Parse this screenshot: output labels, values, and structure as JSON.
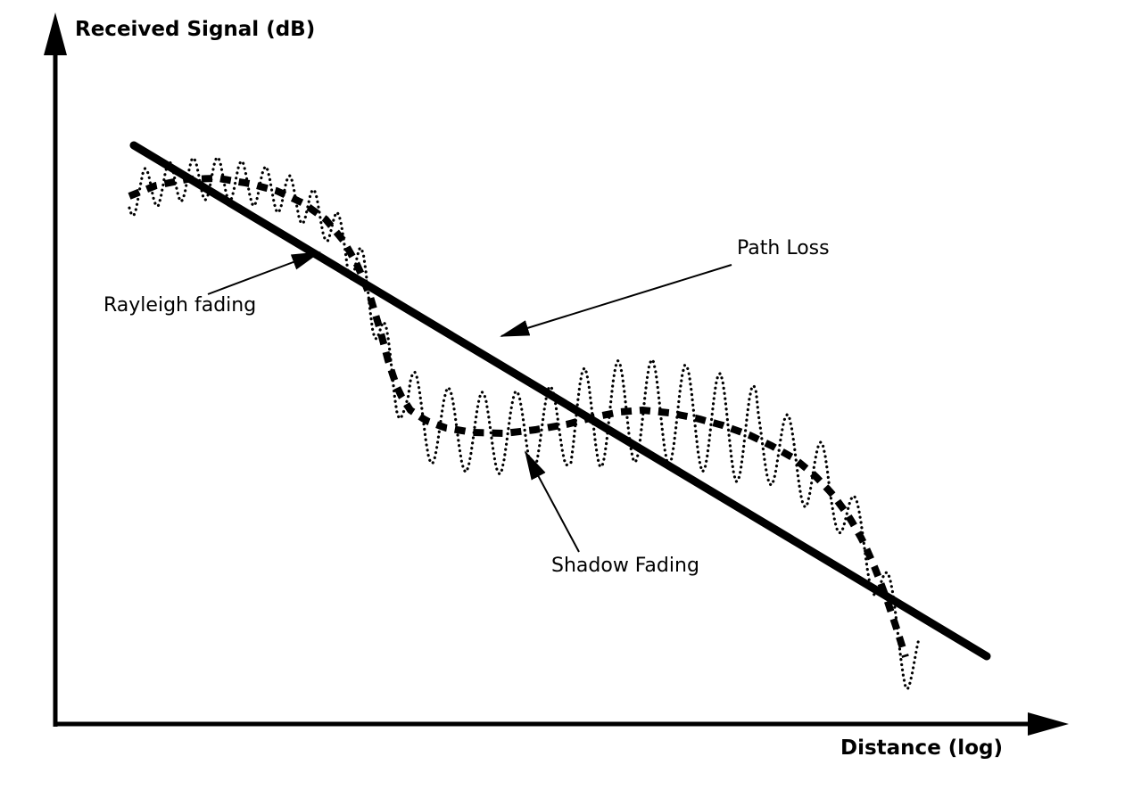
{
  "diagram": {
    "y_axis_label": "Received Signal (dB)",
    "x_axis_label": "Distance (log)",
    "annotations": {
      "path_loss": "Path Loss",
      "rayleigh": "Rayleigh fading",
      "shadow": "Shadow Fading"
    },
    "colors": {
      "ink": "#000000",
      "background": "#ffffff"
    }
  }
}
